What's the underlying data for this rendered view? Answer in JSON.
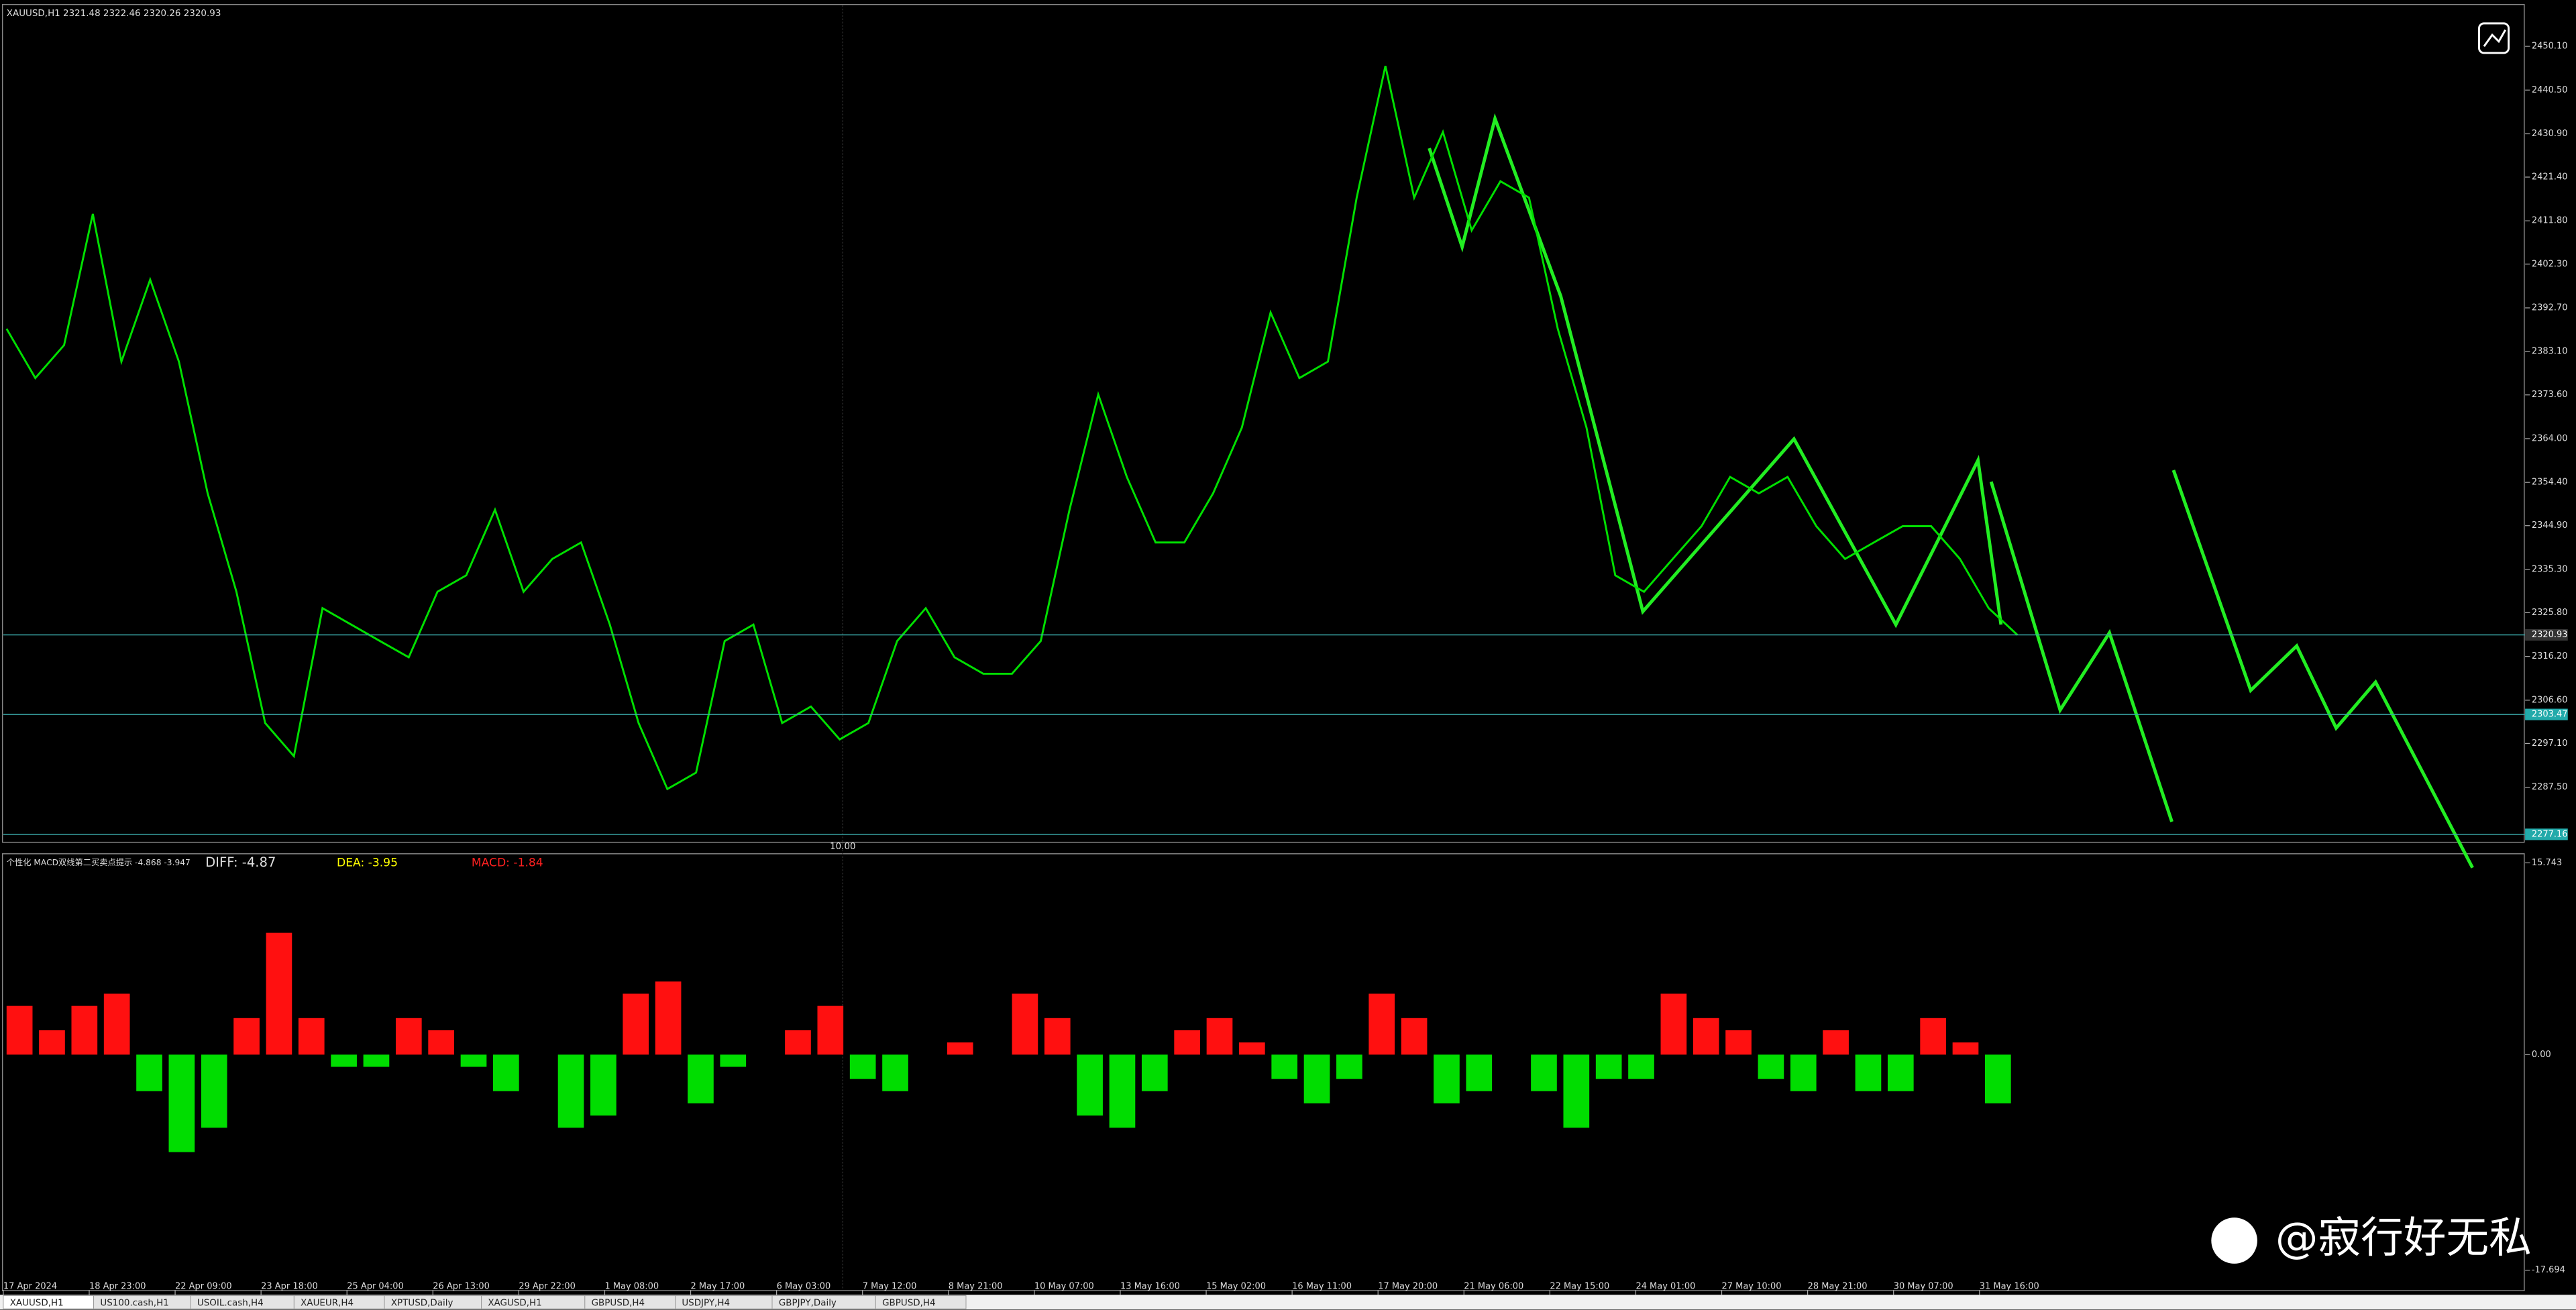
{
  "chart_data": [
    {
      "type": "line",
      "title": "XAUUSD,H1  2321.48 2322.46 2320.26 2320.93",
      "color": "#00e000",
      "values": [
        2388.1,
        2377.3,
        2384.5,
        2413.3,
        2380.9,
        2398.9,
        2380.9,
        2352.0,
        2330.4,
        2301.6,
        2294.3,
        2326.8,
        2323.2,
        2319.6,
        2316.0,
        2330.4,
        2334.0,
        2348.4,
        2330.4,
        2337.6,
        2341.2,
        2323.2,
        2301.6,
        2287.1,
        2290.7,
        2319.6,
        2323.2,
        2301.6,
        2305.2,
        2298.0,
        2301.6,
        2319.6,
        2326.8,
        2316.0,
        2312.4,
        2312.4,
        2319.6,
        2348.4,
        2373.7,
        2355.6,
        2341.2,
        2341.2,
        2352.0,
        2366.4,
        2391.7,
        2377.3,
        2380.9,
        2416.9,
        2445.8,
        2416.9,
        2431.3,
        2409.7,
        2420.5,
        2416.9,
        2388.1,
        2366.4,
        2334.0,
        2330.4,
        2337.6,
        2344.8,
        2355.6,
        2352.0,
        2355.6,
        2344.8,
        2337.6,
        2341.2,
        2344.8,
        2344.8,
        2337.6,
        2326.8,
        2320.9
      ],
      "ylim": [
        2275.6,
        2459.1
      ],
      "yticks": [
        {
          "value": 2450.1,
          "label": "2450.10"
        },
        {
          "value": 2440.5,
          "label": "2440.50"
        },
        {
          "value": 2430.9,
          "label": "2430.90"
        },
        {
          "value": 2421.4,
          "label": "2421.40"
        },
        {
          "value": 2411.8,
          "label": "2411.80"
        },
        {
          "value": 2402.3,
          "label": "2402.30"
        },
        {
          "value": 2392.7,
          "label": "2392.70"
        },
        {
          "value": 2383.1,
          "label": "2383.10"
        },
        {
          "value": 2373.6,
          "label": "2373.60"
        },
        {
          "value": 2364,
          "label": "2364.00"
        },
        {
          "value": 2354.4,
          "label": "2354.40"
        },
        {
          "value": 2344.9,
          "label": "2344.90"
        },
        {
          "value": 2335.3,
          "label": "2335.30"
        },
        {
          "value": 2325.8,
          "label": "2325.80"
        },
        {
          "value": 2316.2,
          "label": "2316.20"
        },
        {
          "value": 2306.6,
          "label": "2306.60"
        },
        {
          "value": 2297.1,
          "label": "2297.10"
        },
        {
          "value": 2287.5,
          "label": "2287.50"
        }
      ],
      "price_lines": [
        {
          "value": 2320.93,
          "label": "2320.93"
        },
        {
          "value": 2303.47,
          "label": "2303.47"
        },
        {
          "value": 2277.16,
          "label": "2277.16"
        }
      ],
      "time_marker": "10.00"
    },
    {
      "type": "bar",
      "title": "个性化 MACD双线第二买卖点提示 -4.868 -3.947",
      "diff": "DIFF: -4.87",
      "dea": "DEA: -3.95",
      "macd": "MACD: -1.84",
      "up_color": "#ff1010",
      "down_color": "#00dd00",
      "values": [
        4,
        2,
        4,
        5,
        -3,
        -8,
        -6,
        3,
        10,
        3,
        -1,
        -1,
        3,
        2,
        -1,
        -3,
        0,
        -6,
        -5,
        5,
        6,
        -4,
        -1,
        0,
        2,
        4,
        -2,
        -3,
        0,
        1,
        0,
        5,
        3,
        -5,
        -6,
        -3,
        2,
        3,
        1,
        -2,
        -4,
        -2,
        5,
        3,
        -4,
        -3,
        0,
        -3,
        -6,
        -2,
        -2,
        5,
        3,
        2,
        -2,
        -3,
        2,
        -3,
        -3,
        3,
        1,
        -4
      ],
      "ylim": [
        -19.31,
        16.42
      ],
      "yticks": [
        {
          "value": 15.743,
          "label": "15.743"
        },
        {
          "value": 0,
          "label": "0.00"
        },
        {
          "value": -17.694,
          "label": "-17.694"
        }
      ]
    }
  ],
  "time_labels": [
    "17 Apr 2024",
    "18 Apr 23:00",
    "22 Apr 09:00",
    "23 Apr 18:00",
    "25 Apr 04:00",
    "26 Apr 13:00",
    "29 Apr 22:00",
    "1 May 08:00",
    "2 May 17:00",
    "6 May 03:00",
    "7 May 12:00",
    "8 May 21:00",
    "10 May 07:00",
    "13 May 16:00",
    "15 May 02:00",
    "16 May 11:00",
    "17 May 20:00",
    "21 May 06:00",
    "22 May 15:00",
    "24 May 01:00",
    "27 May 10:00",
    "28 May 21:00",
    "30 May 07:00",
    "31 May 16:00"
  ],
  "tabs": [
    "XAUUSD,H1",
    "US100.cash,H1",
    "USOIL.cash,H4",
    "XAUEUR,H4",
    "XPTUSD,Daily",
    "XAGUSD,H1",
    "GBPUSD,H4",
    "USDJPY,H4",
    "GBPJPY,Daily",
    "GBPUSD,H4"
  ],
  "watermark": "@寂行好无私"
}
